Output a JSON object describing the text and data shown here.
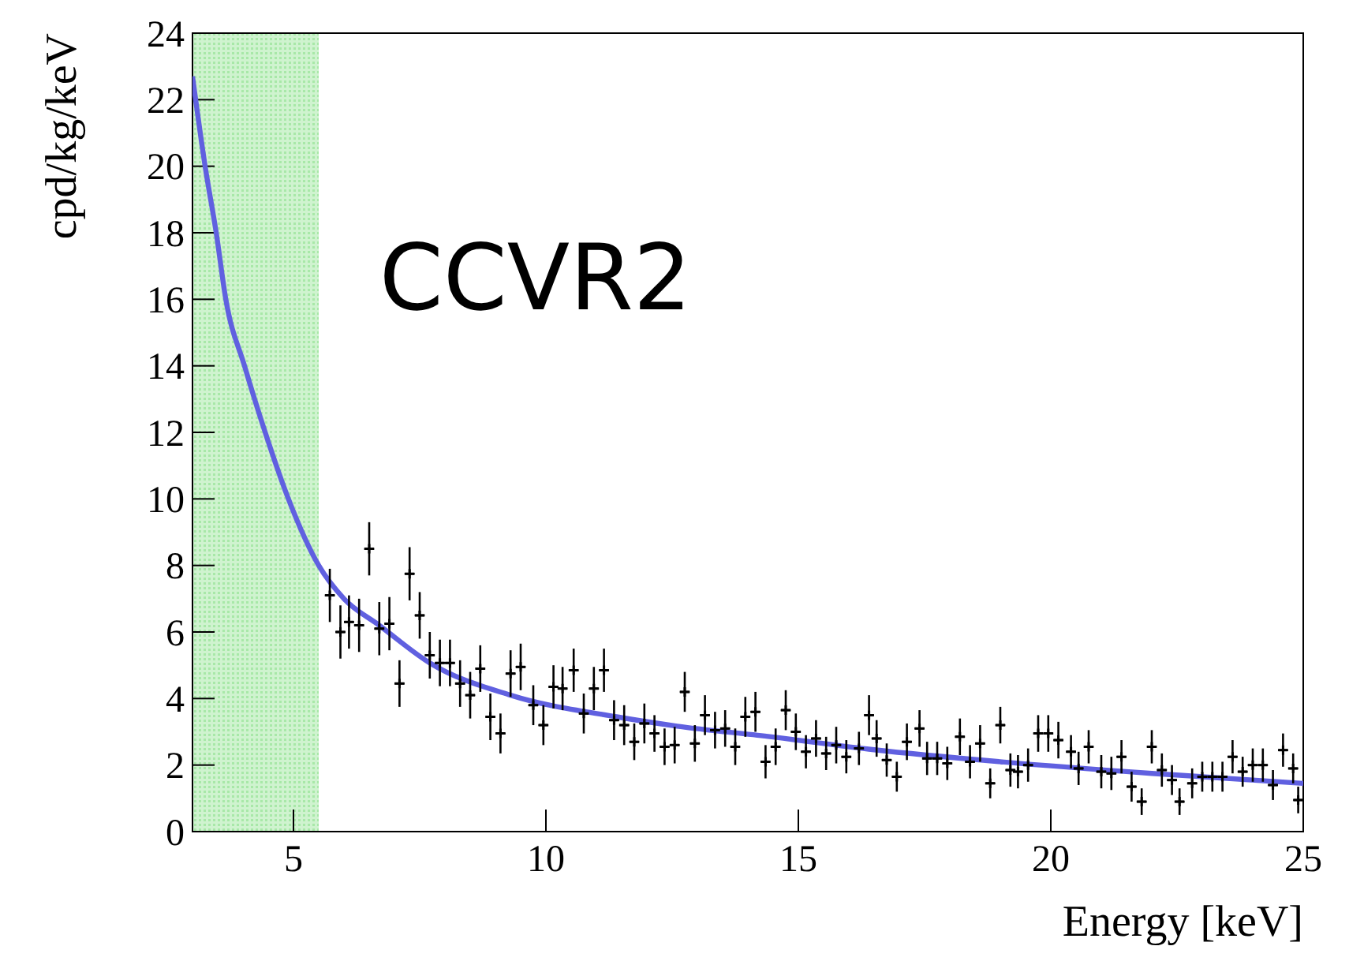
{
  "chart_data": {
    "type": "scatter",
    "xlabel": "Energy [keV]",
    "ylabel": "cpd/kg/keV",
    "annotations": [
      "CCVR2"
    ],
    "xlim": [
      3,
      25
    ],
    "xticks": [
      5,
      10,
      15,
      20,
      25
    ],
    "ylim": [
      0,
      24
    ],
    "yticks": [
      0,
      2,
      4,
      6,
      8,
      10,
      12,
      14,
      16,
      18,
      20,
      22,
      24
    ],
    "grid": false,
    "bands": [
      {
        "axis": "x",
        "from": 3,
        "to": 5.5,
        "color": "#a8e8a8"
      }
    ],
    "series": [
      {
        "color": "#000000",
        "marker": "cross",
        "x": [
          5.72,
          5.93,
          6.1,
          6.3,
          6.5,
          6.7,
          6.9,
          7.1,
          7.3,
          7.5,
          7.7,
          7.9,
          8.1,
          8.3,
          8.5,
          8.7,
          8.9,
          9.1,
          9.3,
          9.5,
          9.75,
          9.95,
          10.15,
          10.33,
          10.55,
          10.75,
          10.95,
          11.15,
          11.35,
          11.55,
          11.75,
          11.95,
          12.15,
          12.35,
          12.55,
          12.75,
          12.95,
          13.15,
          13.35,
          13.55,
          13.75,
          13.95,
          14.15,
          14.35,
          14.55,
          14.75,
          14.95,
          15.15,
          15.35,
          15.55,
          15.75,
          15.95,
          16.2,
          16.4,
          16.55,
          16.75,
          16.95,
          17.15,
          17.4,
          17.55,
          17.75,
          17.95,
          18.2,
          18.4,
          18.6,
          18.8,
          19.0,
          19.2,
          19.35,
          19.55,
          19.75,
          19.95,
          20.15,
          20.4,
          20.55,
          20.75,
          21.0,
          21.2,
          21.4,
          21.6,
          21.8,
          22.0,
          22.2,
          22.4,
          22.55,
          22.8,
          23.0,
          23.2,
          23.4,
          23.6,
          23.8,
          24.0,
          24.2,
          24.4,
          24.6,
          24.8,
          24.9
        ],
        "values": [
          7.1,
          6.0,
          6.3,
          6.2,
          8.5,
          6.1,
          6.25,
          4.45,
          7.75,
          6.5,
          5.3,
          5.07,
          5.07,
          4.45,
          4.1,
          4.9,
          3.45,
          2.95,
          4.75,
          4.95,
          3.8,
          3.2,
          4.35,
          4.3,
          4.85,
          3.55,
          4.3,
          4.85,
          3.35,
          3.2,
          2.7,
          3.25,
          2.95,
          2.55,
          2.6,
          4.2,
          2.65,
          3.5,
          3.05,
          3.1,
          2.55,
          3.45,
          3.6,
          2.1,
          2.55,
          3.65,
          3.0,
          2.4,
          2.8,
          2.35,
          2.6,
          2.25,
          2.5,
          3.5,
          2.8,
          2.15,
          1.65,
          2.7,
          3.1,
          2.2,
          2.2,
          2.05,
          2.85,
          2.1,
          2.65,
          1.45,
          3.2,
          1.85,
          1.8,
          2.0,
          2.95,
          2.95,
          2.75,
          2.4,
          1.9,
          2.55,
          1.8,
          1.75,
          2.25,
          1.35,
          0.9,
          2.55,
          1.85,
          1.55,
          0.9,
          1.45,
          1.65,
          1.65,
          1.65,
          2.25,
          1.8,
          2.0,
          2.0,
          1.4,
          2.45,
          1.9,
          0.95
        ],
        "errors": [
          0.8,
          0.8,
          0.8,
          0.8,
          0.8,
          0.8,
          0.8,
          0.7,
          0.8,
          0.7,
          0.7,
          0.7,
          0.7,
          0.7,
          0.7,
          0.7,
          0.7,
          0.6,
          0.7,
          0.7,
          0.6,
          0.6,
          0.65,
          0.65,
          0.65,
          0.6,
          0.65,
          0.65,
          0.6,
          0.6,
          0.55,
          0.6,
          0.55,
          0.55,
          0.55,
          0.6,
          0.55,
          0.6,
          0.55,
          0.55,
          0.55,
          0.6,
          0.6,
          0.5,
          0.55,
          0.6,
          0.55,
          0.5,
          0.55,
          0.5,
          0.55,
          0.5,
          0.5,
          0.6,
          0.55,
          0.5,
          0.45,
          0.55,
          0.55,
          0.5,
          0.5,
          0.5,
          0.55,
          0.5,
          0.55,
          0.45,
          0.55,
          0.5,
          0.5,
          0.5,
          0.55,
          0.55,
          0.55,
          0.5,
          0.5,
          0.5,
          0.5,
          0.5,
          0.5,
          0.45,
          0.4,
          0.5,
          0.5,
          0.45,
          0.4,
          0.45,
          0.45,
          0.45,
          0.45,
          0.5,
          0.45,
          0.5,
          0.5,
          0.45,
          0.5,
          0.45,
          0.4
        ],
        "xerrors": [
          0.1,
          0.1,
          0.1,
          0.1,
          0.1,
          0.1,
          0.1,
          0.1,
          0.1,
          0.1,
          0.1,
          0.1,
          0.1,
          0.1,
          0.1,
          0.1,
          0.1,
          0.1,
          0.1,
          0.1,
          0.1,
          0.1,
          0.1,
          0.1,
          0.1,
          0.1,
          0.1,
          0.1,
          0.1,
          0.1,
          0.1,
          0.1,
          0.1,
          0.1,
          0.1,
          0.1,
          0.1,
          0.1,
          0.1,
          0.1,
          0.1,
          0.1,
          0.1,
          0.1,
          0.1,
          0.1,
          0.1,
          0.1,
          0.1,
          0.1,
          0.1,
          0.1,
          0.1,
          0.1,
          0.1,
          0.1,
          0.1,
          0.1,
          0.1,
          0.1,
          0.1,
          0.1,
          0.1,
          0.1,
          0.1,
          0.1,
          0.1,
          0.1,
          0.1,
          0.1,
          0.1,
          0.1,
          0.1,
          0.1,
          0.1,
          0.1,
          0.1,
          0.1,
          0.1,
          0.1,
          0.1,
          0.1,
          0.1,
          0.1,
          0.1,
          0.1,
          0.1,
          0.1,
          0.1,
          0.1,
          0.1,
          0.1,
          0.1,
          0.1,
          0.1,
          0.1,
          0.1
        ]
      },
      {
        "type": "line",
        "color": "#6060e0",
        "x": [
          3,
          3.25,
          3.47,
          3.66,
          4.03,
          4.44,
          4.9,
          5.5,
          6.0,
          6.7,
          7.7,
          9.3,
          11.4,
          12.6,
          14.4,
          16.5,
          19,
          22,
          25
        ],
        "values": [
          22.7,
          20,
          18,
          16,
          14,
          12,
          10,
          8,
          7.0,
          6.2,
          5.07,
          4.1,
          3.45,
          3.17,
          2.86,
          2.46,
          2.1,
          1.75,
          1.45
        ]
      }
    ]
  }
}
